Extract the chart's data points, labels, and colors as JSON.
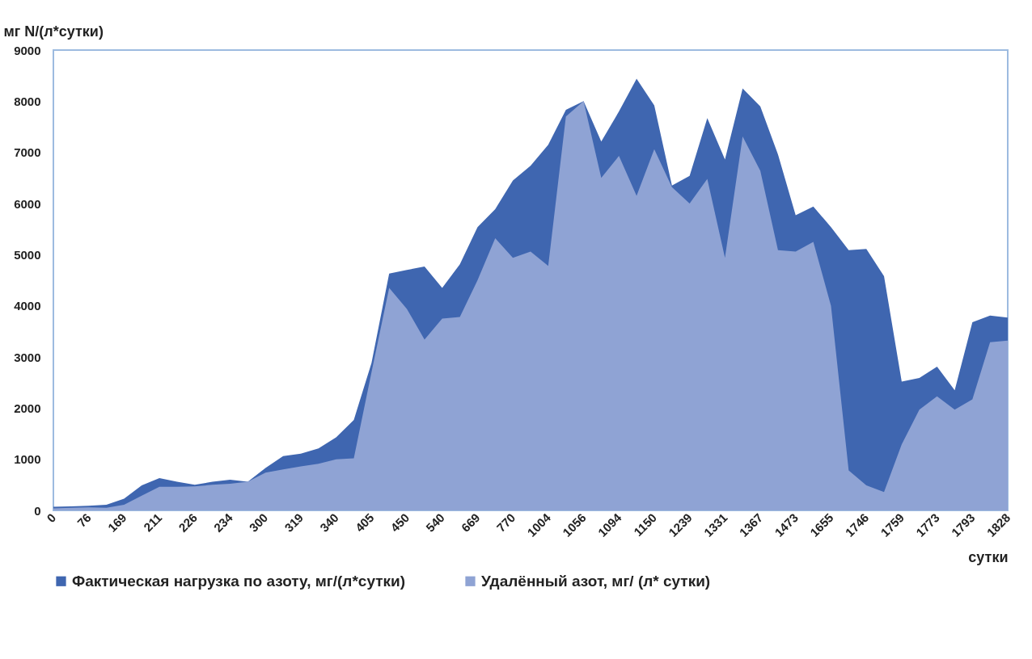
{
  "chart_data": {
    "type": "area",
    "ylabel": "мг N/(л*сутки)",
    "xlabel": "сутки",
    "legend": "bottom",
    "ylim": [
      0,
      9000
    ],
    "yticks": [
      0,
      1000,
      2000,
      3000,
      4000,
      5000,
      6000,
      7000,
      8000,
      9000
    ],
    "categories": [
      "0",
      null,
      "76",
      null,
      "169",
      null,
      "211",
      null,
      "226",
      null,
      "234",
      null,
      "300",
      null,
      "319",
      null,
      "340",
      null,
      "405",
      null,
      "450",
      null,
      "540",
      null,
      "669",
      null,
      "770",
      null,
      "1004",
      null,
      "1056",
      null,
      "1094",
      null,
      "1150",
      null,
      "1239",
      null,
      "1331",
      null,
      "1367",
      null,
      "1473",
      null,
      "1655",
      null,
      "1746",
      null,
      "1759",
      null,
      "1773",
      null,
      "1793",
      null,
      "1828"
    ],
    "series": [
      {
        "name": "Фактическая нагрузка по азоту, мг/(л*сутки)",
        "color": "#3f66b0",
        "values": [
          70,
          80,
          90,
          110,
          230,
          490,
          630,
          560,
          500,
          560,
          600,
          560,
          830,
          1060,
          1110,
          1210,
          1430,
          1770,
          2880,
          4630,
          4700,
          4770,
          4350,
          4810,
          5540,
          5890,
          6450,
          6740,
          7150,
          7830,
          8000,
          7210,
          7800,
          8440,
          7920,
          6350,
          6540,
          7670,
          6860,
          8250,
          7900,
          6960,
          5770,
          5940,
          5540,
          5090,
          5110,
          4580,
          2520,
          2590,
          2810,
          2350,
          3680,
          3810,
          3770
        ]
      },
      {
        "name": "Удалённый азот, мг/ (л* сутки)",
        "color": "#8fa3d4",
        "values": [
          40,
          50,
          60,
          50,
          110,
          290,
          460,
          460,
          470,
          500,
          520,
          560,
          740,
          800,
          860,
          910,
          1000,
          1020,
          2700,
          4350,
          3940,
          3340,
          3750,
          3780,
          4500,
          5320,
          4940,
          5060,
          4780,
          7700,
          8000,
          6500,
          6930,
          6150,
          7060,
          6320,
          6000,
          6480,
          4940,
          7310,
          6640,
          5090,
          5060,
          5250,
          4000,
          780,
          490,
          360,
          1290,
          1970,
          2230,
          1970,
          2170,
          3290,
          3320
        ]
      }
    ]
  }
}
